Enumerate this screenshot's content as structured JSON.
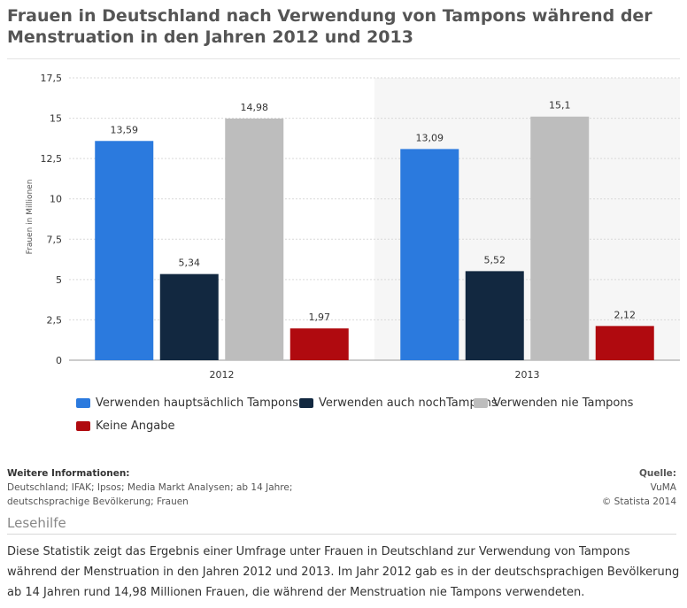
{
  "title": "Frauen in Deutschland nach Verwendung von Tampons während der Menstruation in den Jahren 2012 und 2013",
  "chart_data": {
    "type": "bar",
    "categories": [
      "2012",
      "2013"
    ],
    "ylabel": "Frauen in Millionen",
    "xlabel": "",
    "ylim": [
      0,
      17.5
    ],
    "yticks": [
      0,
      2.5,
      5,
      7.5,
      10,
      12.5,
      15,
      17.5
    ],
    "ytick_labels": [
      "0",
      "2,5",
      "5",
      "7,5",
      "10",
      "12,5",
      "15",
      "17,5"
    ],
    "series": [
      {
        "name": "Verwenden hauptsächlich Tampons",
        "color": "#2b7ade",
        "values": [
          13.59,
          13.09
        ],
        "labels": [
          "13,59",
          "13,09"
        ]
      },
      {
        "name": "Verwenden auch nochTampons",
        "color": "#122840",
        "values": [
          5.34,
          5.52
        ],
        "labels": [
          "5,34",
          "5,52"
        ]
      },
      {
        "name": "Verwenden nie Tampons",
        "color": "#bdbdbd",
        "values": [
          14.98,
          15.1
        ],
        "labels": [
          "14,98",
          "15,1"
        ]
      },
      {
        "name": "Keine Angabe",
        "color": "#b00a0f",
        "values": [
          1.97,
          2.12
        ],
        "labels": [
          "1,97",
          "2,12"
        ]
      }
    ]
  },
  "info": {
    "heading": "Weitere Informationen:",
    "line1": "Deutschland; IFAK; Ipsos; Media Markt Analysen; ab 14 Jahre;",
    "line2": "deutschsprachige Bevölkerung; Frauen"
  },
  "source": {
    "heading": "Quelle:",
    "name": "VuMA",
    "copyright": "© Statista 2014"
  },
  "lesehilfe": {
    "title": "Lesehilfe",
    "text": "Diese Statistik zeigt das Ergebnis einer Umfrage unter Frauen in Deutschland zur Verwendung von Tampons während der Menstruation in den Jahren 2012 und 2013. Im Jahr 2012 gab es in der deutschsprachigen Bevölkerung ab 14 Jahren rund 14,98 Millionen Frauen, die während der Menstruation nie Tampons verwendeten."
  }
}
